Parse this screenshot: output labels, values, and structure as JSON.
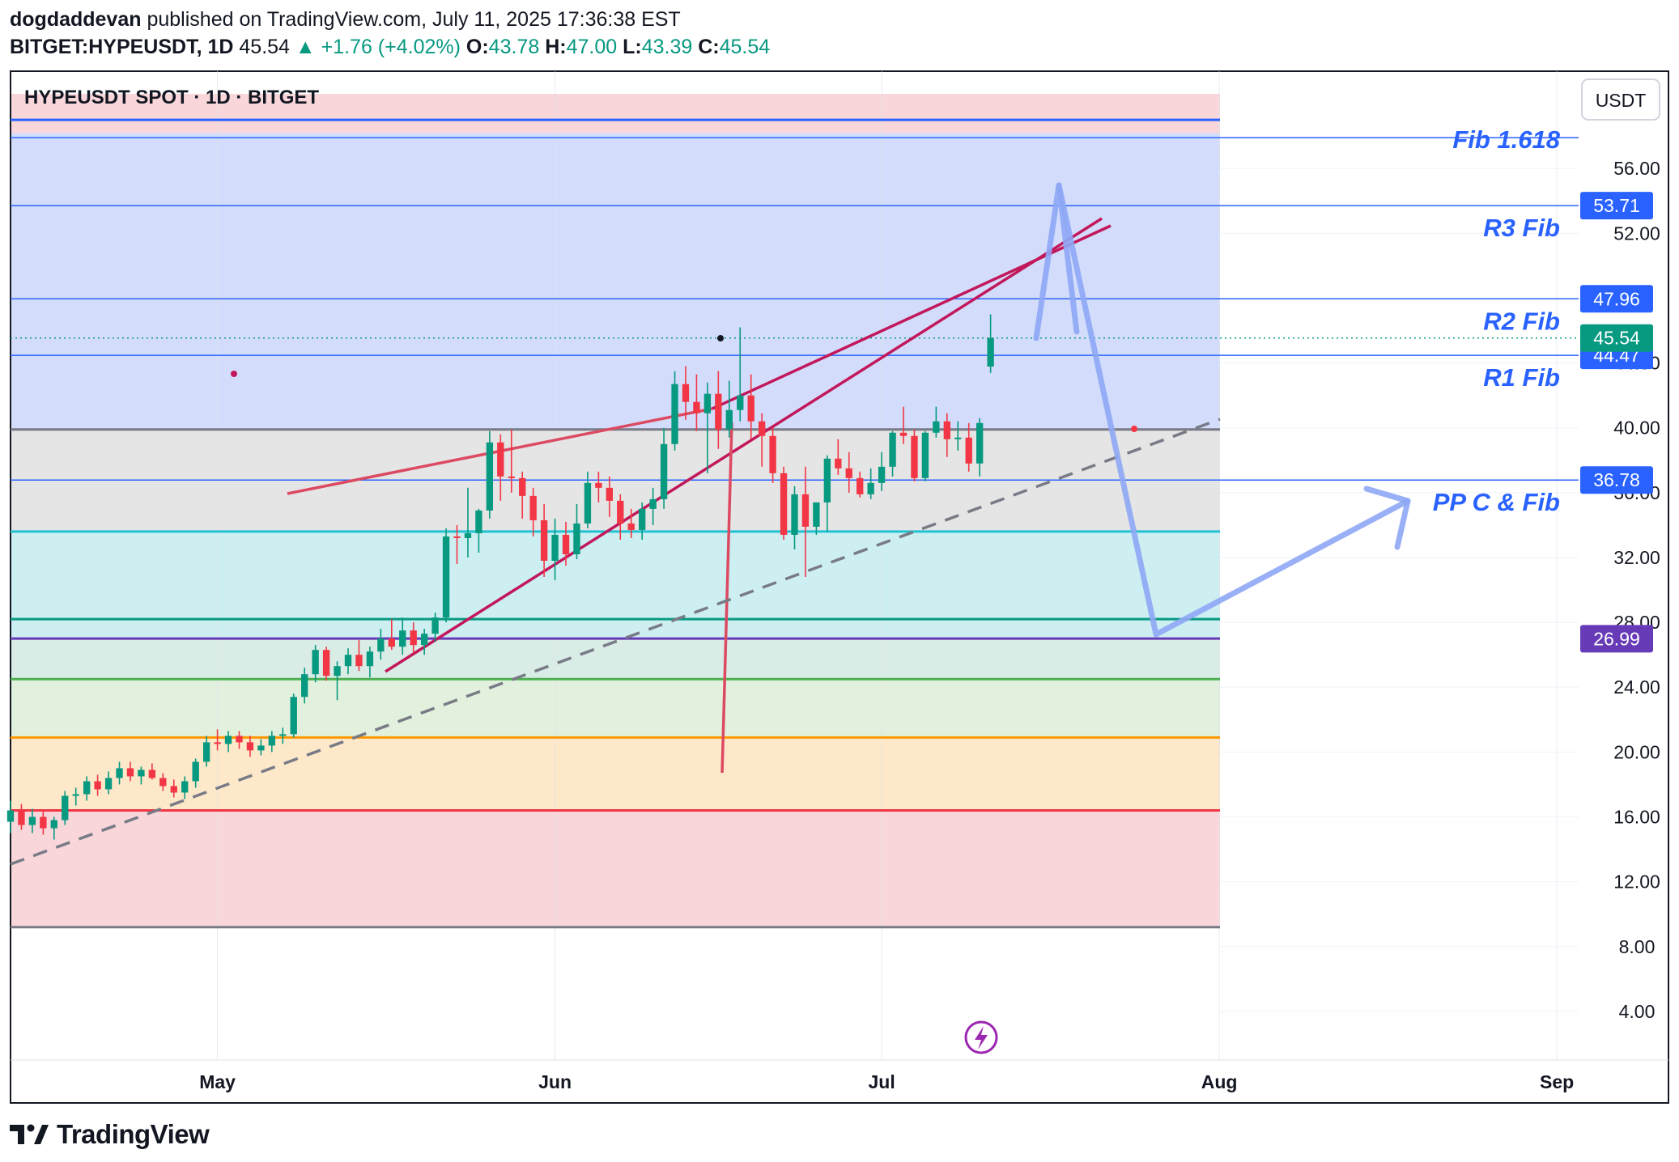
{
  "header": {
    "author": "dogdaddevan",
    "published": "published on TradingView.com, July 11, 2025 17:36:38 EST",
    "symbol": "BITGET:HYPEUSDT, 1D",
    "last": "45.54",
    "change": "▲ +1.76 (+4.02%)",
    "open_label": "O:",
    "open": "43.78",
    "high_label": "H:",
    "high": "47.00",
    "low_label": "L:",
    "low": "43.39",
    "close_label": "C:",
    "close": "45.54"
  },
  "chart_title": "HYPEUSDT SPOT · 1D · BITGET",
  "currency_button": "USDT",
  "footer": {
    "brand": "TradingView"
  },
  "chart_data": {
    "type": "candlestick",
    "ylim": [
      1,
      62
    ],
    "y_ticks": [
      {
        "value": 4,
        "label": "4.00"
      },
      {
        "value": 8,
        "label": "8.00"
      },
      {
        "value": 12,
        "label": "12.00"
      },
      {
        "value": 16,
        "label": "16.00"
      },
      {
        "value": 20,
        "label": "20.00"
      },
      {
        "value": 24,
        "label": "24.00"
      },
      {
        "value": 28,
        "label": "28.00"
      },
      {
        "value": 32,
        "label": "32.00"
      },
      {
        "value": 36,
        "label": "36.00"
      },
      {
        "value": 40,
        "label": "40.00"
      },
      {
        "value": 44,
        "label": "44.00"
      },
      {
        "value": 52,
        "label": "52.00"
      },
      {
        "value": 56,
        "label": "56.00"
      }
    ],
    "x_ticks": [
      {
        "date": "2025-05-01",
        "label": "May"
      },
      {
        "date": "2025-06-01",
        "label": "Jun"
      },
      {
        "date": "2025-07-01",
        "label": "Jul"
      },
      {
        "date": "2025-08-01",
        "label": "Aug"
      },
      {
        "date": "2025-09-01",
        "label": "Sep"
      }
    ],
    "xlim": [
      "2025-04-12",
      "2025-09-03"
    ],
    "zones": [
      {
        "from": 9.2,
        "to": 16.4,
        "color": "#f9d6da"
      },
      {
        "from": 16.4,
        "to": 20.9,
        "color": "#fde9c9"
      },
      {
        "from": 20.9,
        "to": 24.5,
        "color": "#e2f1dd"
      },
      {
        "from": 24.5,
        "to": 27.0,
        "color": "#d9ece6"
      },
      {
        "from": 27.0,
        "to": 33.6,
        "color": "#cdeff2"
      },
      {
        "from": 33.6,
        "to": 39.9,
        "color": "#e5e5e5"
      },
      {
        "from": 39.9,
        "to": 58.2,
        "color": "#d3ddfb"
      },
      {
        "from": 58.2,
        "to": 60.6,
        "color": "#f9d6da"
      }
    ],
    "level_lines": [
      {
        "value": 9.2,
        "color": "#787b86",
        "width": 3
      },
      {
        "value": 16.4,
        "color": "#f23645",
        "width": 3
      },
      {
        "value": 20.9,
        "color": "#ff9800",
        "width": 3
      },
      {
        "value": 24.5,
        "color": "#4caf50",
        "width": 3
      },
      {
        "value": 27.0,
        "color": "#673ab7",
        "width": 3
      },
      {
        "value": 28.2,
        "color": "#089981",
        "width": 3
      },
      {
        "value": 33.6,
        "color": "#22c2d2",
        "width": 3
      },
      {
        "value": 39.9,
        "color": "#787b86",
        "width": 3
      },
      {
        "value": 59.0,
        "color": "#2962ff",
        "width": 3
      }
    ],
    "fib_lines": [
      {
        "value": 36.78,
        "label": "PP C & Fib",
        "price_tag": "36.78"
      },
      {
        "value": 44.47,
        "label": "R1 Fib",
        "price_tag": "44.47"
      },
      {
        "value": 47.96,
        "label": "R2 Fib",
        "price_tag": "47.96"
      },
      {
        "value": 53.71,
        "label": "R3 Fib",
        "price_tag": "53.71"
      },
      {
        "value": 57.9,
        "label": "Fib 1.618",
        "price_tag": ""
      }
    ],
    "price_tags": [
      {
        "value": 45.54,
        "label": "45.54",
        "color": "#089981"
      },
      {
        "value": 26.99,
        "label": "26.99",
        "color": "#673ab7"
      }
    ],
    "candles": [
      {
        "date": "2025-04-12",
        "o": 15.7,
        "h": 17.0,
        "l": 15.0,
        "c": 16.4
      },
      {
        "date": "2025-04-13",
        "o": 16.4,
        "h": 16.8,
        "l": 15.2,
        "c": 15.5
      },
      {
        "date": "2025-04-14",
        "o": 15.5,
        "h": 16.5,
        "l": 15.0,
        "c": 16.0
      },
      {
        "date": "2025-04-15",
        "o": 16.0,
        "h": 16.4,
        "l": 14.9,
        "c": 15.3
      },
      {
        "date": "2025-04-16",
        "o": 15.3,
        "h": 16.0,
        "l": 14.6,
        "c": 15.8
      },
      {
        "date": "2025-04-17",
        "o": 15.8,
        "h": 17.6,
        "l": 15.5,
        "c": 17.3
      },
      {
        "date": "2025-04-18",
        "o": 17.3,
        "h": 17.8,
        "l": 16.7,
        "c": 17.4
      },
      {
        "date": "2025-04-19",
        "o": 17.4,
        "h": 18.5,
        "l": 17.0,
        "c": 18.2
      },
      {
        "date": "2025-04-20",
        "o": 18.2,
        "h": 18.6,
        "l": 17.3,
        "c": 17.7
      },
      {
        "date": "2025-04-21",
        "o": 17.7,
        "h": 18.8,
        "l": 17.4,
        "c": 18.4
      },
      {
        "date": "2025-04-22",
        "o": 18.4,
        "h": 19.4,
        "l": 18.0,
        "c": 19.0
      },
      {
        "date": "2025-04-23",
        "o": 19.0,
        "h": 19.4,
        "l": 18.2,
        "c": 18.5
      },
      {
        "date": "2025-04-24",
        "o": 18.5,
        "h": 19.1,
        "l": 18.0,
        "c": 18.9
      },
      {
        "date": "2025-04-25",
        "o": 18.9,
        "h": 19.3,
        "l": 18.3,
        "c": 18.4
      },
      {
        "date": "2025-04-26",
        "o": 18.4,
        "h": 18.7,
        "l": 17.6,
        "c": 17.9
      },
      {
        "date": "2025-04-27",
        "o": 17.9,
        "h": 18.3,
        "l": 17.2,
        "c": 17.5
      },
      {
        "date": "2025-04-28",
        "o": 17.5,
        "h": 18.5,
        "l": 17.1,
        "c": 18.2
      },
      {
        "date": "2025-04-29",
        "o": 18.2,
        "h": 19.6,
        "l": 17.8,
        "c": 19.4
      },
      {
        "date": "2025-04-30",
        "o": 19.4,
        "h": 21.0,
        "l": 19.1,
        "c": 20.6
      },
      {
        "date": "2025-05-01",
        "o": 20.6,
        "h": 21.4,
        "l": 20.1,
        "c": 20.5
      },
      {
        "date": "2025-05-02",
        "o": 20.5,
        "h": 21.3,
        "l": 20.0,
        "c": 21.0
      },
      {
        "date": "2025-05-03",
        "o": 21.0,
        "h": 21.3,
        "l": 20.2,
        "c": 20.6
      },
      {
        "date": "2025-05-04",
        "o": 20.6,
        "h": 21.0,
        "l": 19.7,
        "c": 20.1
      },
      {
        "date": "2025-05-05",
        "o": 20.1,
        "h": 20.8,
        "l": 19.8,
        "c": 20.4
      },
      {
        "date": "2025-05-06",
        "o": 20.4,
        "h": 21.3,
        "l": 20.0,
        "c": 21.0
      },
      {
        "date": "2025-05-07",
        "o": 21.0,
        "h": 21.5,
        "l": 20.5,
        "c": 21.1
      },
      {
        "date": "2025-05-08",
        "o": 21.1,
        "h": 23.6,
        "l": 20.9,
        "c": 23.4
      },
      {
        "date": "2025-05-09",
        "o": 23.4,
        "h": 25.2,
        "l": 23.0,
        "c": 24.8
      },
      {
        "date": "2025-05-10",
        "o": 24.8,
        "h": 26.6,
        "l": 24.3,
        "c": 26.3
      },
      {
        "date": "2025-05-11",
        "o": 26.3,
        "h": 26.5,
        "l": 24.4,
        "c": 24.7
      },
      {
        "date": "2025-05-12",
        "o": 24.7,
        "h": 25.6,
        "l": 23.2,
        "c": 25.3
      },
      {
        "date": "2025-05-13",
        "o": 25.3,
        "h": 26.4,
        "l": 24.8,
        "c": 26.0
      },
      {
        "date": "2025-05-14",
        "o": 26.0,
        "h": 26.9,
        "l": 25.0,
        "c": 25.3
      },
      {
        "date": "2025-05-15",
        "o": 25.3,
        "h": 26.5,
        "l": 24.6,
        "c": 26.2
      },
      {
        "date": "2025-05-16",
        "o": 26.2,
        "h": 27.6,
        "l": 25.7,
        "c": 27.0
      },
      {
        "date": "2025-05-17",
        "o": 27.0,
        "h": 28.2,
        "l": 26.3,
        "c": 26.5
      },
      {
        "date": "2025-05-18",
        "o": 26.5,
        "h": 28.3,
        "l": 26.0,
        "c": 27.5
      },
      {
        "date": "2025-05-19",
        "o": 27.5,
        "h": 28.0,
        "l": 26.1,
        "c": 26.6
      },
      {
        "date": "2025-05-20",
        "o": 26.6,
        "h": 27.6,
        "l": 26.0,
        "c": 27.3
      },
      {
        "date": "2025-05-21",
        "o": 27.3,
        "h": 28.6,
        "l": 26.8,
        "c": 28.3
      },
      {
        "date": "2025-05-22",
        "o": 28.3,
        "h": 33.8,
        "l": 28.0,
        "c": 33.3
      },
      {
        "date": "2025-05-23",
        "o": 33.3,
        "h": 34.0,
        "l": 31.6,
        "c": 33.2
      },
      {
        "date": "2025-05-24",
        "o": 33.2,
        "h": 36.3,
        "l": 32.0,
        "c": 33.5
      },
      {
        "date": "2025-05-25",
        "o": 33.5,
        "h": 35.0,
        "l": 32.3,
        "c": 34.9
      },
      {
        "date": "2025-05-26",
        "o": 34.9,
        "h": 39.8,
        "l": 34.4,
        "c": 39.1
      },
      {
        "date": "2025-05-27",
        "o": 39.1,
        "h": 39.6,
        "l": 35.5,
        "c": 37.0
      },
      {
        "date": "2025-05-28",
        "o": 37.0,
        "h": 39.9,
        "l": 36.0,
        "c": 36.9
      },
      {
        "date": "2025-05-29",
        "o": 36.9,
        "h": 37.3,
        "l": 34.4,
        "c": 35.8
      },
      {
        "date": "2025-05-30",
        "o": 35.8,
        "h": 36.3,
        "l": 33.3,
        "c": 34.3
      },
      {
        "date": "2025-05-31",
        "o": 34.3,
        "h": 35.3,
        "l": 30.8,
        "c": 31.8
      },
      {
        "date": "2025-06-01",
        "o": 31.8,
        "h": 34.4,
        "l": 30.6,
        "c": 33.4
      },
      {
        "date": "2025-06-02",
        "o": 33.4,
        "h": 34.2,
        "l": 31.5,
        "c": 32.2
      },
      {
        "date": "2025-06-03",
        "o": 32.2,
        "h": 35.3,
        "l": 31.9,
        "c": 34.1
      },
      {
        "date": "2025-06-04",
        "o": 34.1,
        "h": 37.3,
        "l": 33.8,
        "c": 36.6
      },
      {
        "date": "2025-06-05",
        "o": 36.6,
        "h": 37.3,
        "l": 35.4,
        "c": 36.3
      },
      {
        "date": "2025-06-06",
        "o": 36.3,
        "h": 37.0,
        "l": 34.5,
        "c": 35.5
      },
      {
        "date": "2025-06-07",
        "o": 35.5,
        "h": 35.9,
        "l": 33.1,
        "c": 34.1
      },
      {
        "date": "2025-06-08",
        "o": 34.1,
        "h": 35.0,
        "l": 33.2,
        "c": 33.7
      },
      {
        "date": "2025-06-09",
        "o": 33.7,
        "h": 35.4,
        "l": 33.1,
        "c": 35.0
      },
      {
        "date": "2025-06-10",
        "o": 35.0,
        "h": 36.3,
        "l": 34.0,
        "c": 35.6
      },
      {
        "date": "2025-06-11",
        "o": 35.6,
        "h": 40.0,
        "l": 35.0,
        "c": 39.0
      },
      {
        "date": "2025-06-12",
        "o": 39.0,
        "h": 43.5,
        "l": 38.6,
        "c": 42.7
      },
      {
        "date": "2025-06-13",
        "o": 42.7,
        "h": 43.8,
        "l": 40.5,
        "c": 41.6
      },
      {
        "date": "2025-06-14",
        "o": 41.6,
        "h": 43.3,
        "l": 39.8,
        "c": 40.9
      },
      {
        "date": "2025-06-15",
        "o": 40.9,
        "h": 42.8,
        "l": 37.2,
        "c": 42.1
      },
      {
        "date": "2025-06-16",
        "o": 42.1,
        "h": 43.5,
        "l": 38.7,
        "c": 39.9
      },
      {
        "date": "2025-06-17",
        "o": 39.9,
        "h": 42.9,
        "l": 39.4,
        "c": 41.1
      },
      {
        "date": "2025-06-18",
        "o": 41.1,
        "h": 46.2,
        "l": 40.4,
        "c": 42.0
      },
      {
        "date": "2025-06-19",
        "o": 42.0,
        "h": 43.3,
        "l": 39.3,
        "c": 40.4
      },
      {
        "date": "2025-06-20",
        "o": 40.4,
        "h": 40.9,
        "l": 37.6,
        "c": 39.5
      },
      {
        "date": "2025-06-21",
        "o": 39.5,
        "h": 40.0,
        "l": 36.6,
        "c": 37.2
      },
      {
        "date": "2025-06-22",
        "o": 37.2,
        "h": 37.6,
        "l": 33.1,
        "c": 33.4
      },
      {
        "date": "2025-06-23",
        "o": 33.4,
        "h": 36.4,
        "l": 32.5,
        "c": 35.9
      },
      {
        "date": "2025-06-24",
        "o": 35.9,
        "h": 37.6,
        "l": 30.8,
        "c": 33.9
      },
      {
        "date": "2025-06-25",
        "o": 33.9,
        "h": 35.4,
        "l": 33.4,
        "c": 35.4
      },
      {
        "date": "2025-06-26",
        "o": 35.4,
        "h": 38.3,
        "l": 33.6,
        "c": 38.1
      },
      {
        "date": "2025-06-27",
        "o": 38.1,
        "h": 39.3,
        "l": 37.1,
        "c": 37.5
      },
      {
        "date": "2025-06-28",
        "o": 37.5,
        "h": 38.5,
        "l": 36.0,
        "c": 36.9
      },
      {
        "date": "2025-06-29",
        "o": 36.9,
        "h": 37.3,
        "l": 35.7,
        "c": 35.9
      },
      {
        "date": "2025-06-30",
        "o": 35.9,
        "h": 37.5,
        "l": 35.6,
        "c": 36.6
      },
      {
        "date": "2025-07-01",
        "o": 36.6,
        "h": 38.5,
        "l": 36.1,
        "c": 37.6
      },
      {
        "date": "2025-07-02",
        "o": 37.6,
        "h": 39.8,
        "l": 37.0,
        "c": 39.7
      },
      {
        "date": "2025-07-03",
        "o": 39.7,
        "h": 41.3,
        "l": 39.0,
        "c": 39.5
      },
      {
        "date": "2025-07-04",
        "o": 39.5,
        "h": 39.9,
        "l": 36.7,
        "c": 36.9
      },
      {
        "date": "2025-07-05",
        "o": 36.9,
        "h": 39.8,
        "l": 36.7,
        "c": 39.7
      },
      {
        "date": "2025-07-06",
        "o": 39.7,
        "h": 41.3,
        "l": 39.4,
        "c": 40.4
      },
      {
        "date": "2025-07-07",
        "o": 40.4,
        "h": 40.9,
        "l": 38.2,
        "c": 39.3
      },
      {
        "date": "2025-07-08",
        "o": 39.3,
        "h": 40.4,
        "l": 38.6,
        "c": 39.4
      },
      {
        "date": "2025-07-09",
        "o": 39.4,
        "h": 40.3,
        "l": 37.3,
        "c": 37.8
      },
      {
        "date": "2025-07-10",
        "o": 37.8,
        "h": 40.6,
        "l": 37.0,
        "c": 40.3
      },
      {
        "date": "2025-07-11",
        "o": 43.78,
        "h": 47.0,
        "l": 43.39,
        "c": 45.54
      }
    ],
    "annotation_labels": [
      "Fib 1.618",
      "R3 Fib",
      "R2 Fib",
      "R1 Fib",
      "PP C & Fib"
    ]
  },
  "colors": {
    "up": "#089981",
    "down": "#f23645",
    "trendline": "#c2185b",
    "fib_line": "#2962ff",
    "fib_text": "#2962ff",
    "arrow": "#8ea7f5",
    "dashed": "#787b86"
  }
}
